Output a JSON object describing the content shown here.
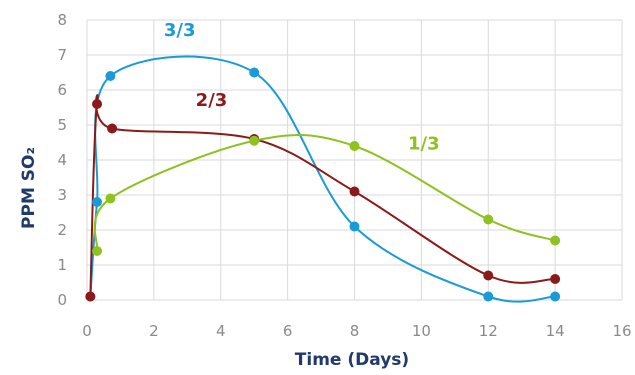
{
  "chart_data": {
    "type": "line",
    "title": "",
    "xlabel": "Time (Days)",
    "ylabel": "PPM SO₂",
    "xlim": [
      0,
      16
    ],
    "ylim": [
      0,
      8
    ],
    "xticks": [
      "0",
      "2",
      "4",
      "6",
      "8",
      "10",
      "12",
      "14",
      "16"
    ],
    "yticks": [
      "0",
      "1",
      "2",
      "3",
      "4",
      "5",
      "6",
      "7",
      "8"
    ],
    "grid": true,
    "series": [
      {
        "name": "3/3",
        "color": "#1a9bd7",
        "x": [
          0.1,
          0.3,
          0.7,
          5,
          8,
          12,
          14
        ],
        "y": [
          0.1,
          2.8,
          6.4,
          6.5,
          2.1,
          0.1,
          0.1
        ]
      },
      {
        "name": "2/3",
        "color": "#8b1a1a",
        "x": [
          0.1,
          0.3,
          0.75,
          5,
          8,
          12,
          14
        ],
        "y": [
          0.1,
          5.6,
          4.9,
          4.6,
          3.1,
          0.7,
          0.6
        ]
      },
      {
        "name": "1/3",
        "color": "#8dc21f",
        "x": [
          0.3,
          0.7,
          5,
          8,
          12,
          14
        ],
        "y": [
          1.4,
          2.9,
          4.55,
          4.4,
          2.3,
          1.7
        ]
      }
    ]
  }
}
